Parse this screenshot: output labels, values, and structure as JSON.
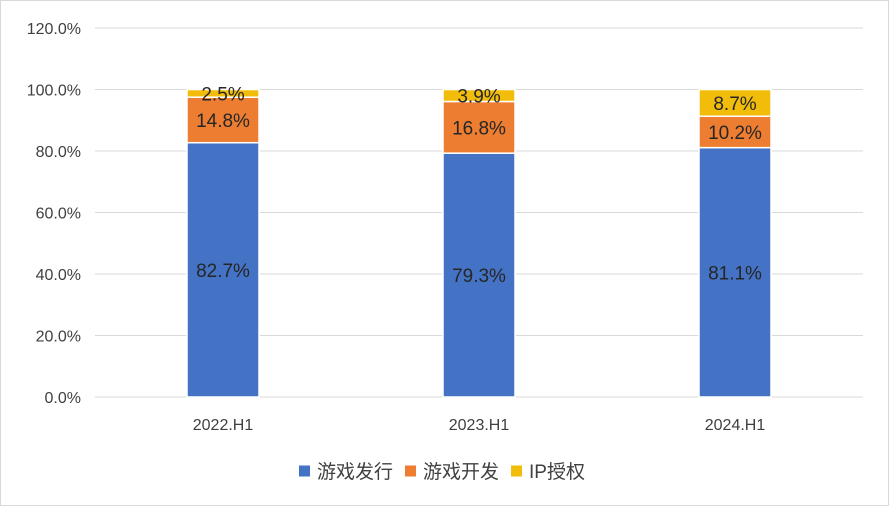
{
  "chart_data": {
    "type": "bar",
    "stacked": true,
    "categories": [
      "2022.H1",
      "2023.H1",
      "2024.H1"
    ],
    "series": [
      {
        "name": "游戏发行",
        "values": [
          82.7,
          79.3,
          81.1
        ],
        "labels": [
          "82.7%",
          "79.3%",
          "81.1%"
        ],
        "color": "#4472C4"
      },
      {
        "name": "游戏开发",
        "values": [
          14.8,
          16.8,
          10.2
        ],
        "labels": [
          "14.8%",
          "16.8%",
          "10.2%"
        ],
        "color": "#ED7D31"
      },
      {
        "name": "IP授权",
        "values": [
          2.5,
          3.9,
          8.7
        ],
        "labels": [
          "2.5%",
          "3.9%",
          "8.7%"
        ],
        "color": "#F2BD0A"
      }
    ],
    "ylim": [
      0,
      120
    ],
    "y_ticks": [
      0,
      20,
      40,
      60,
      80,
      100,
      120
    ],
    "y_tick_labels": [
      "0.0%",
      "20.0%",
      "40.0%",
      "60.0%",
      "80.0%",
      "100.0%",
      "120.0%"
    ],
    "title": "",
    "xlabel": "",
    "ylabel": "",
    "grid": true,
    "legend_position": "bottom",
    "colors": {
      "grid": "#D9D9D9",
      "axis_text": "#404040",
      "label_text": "#262626"
    }
  }
}
